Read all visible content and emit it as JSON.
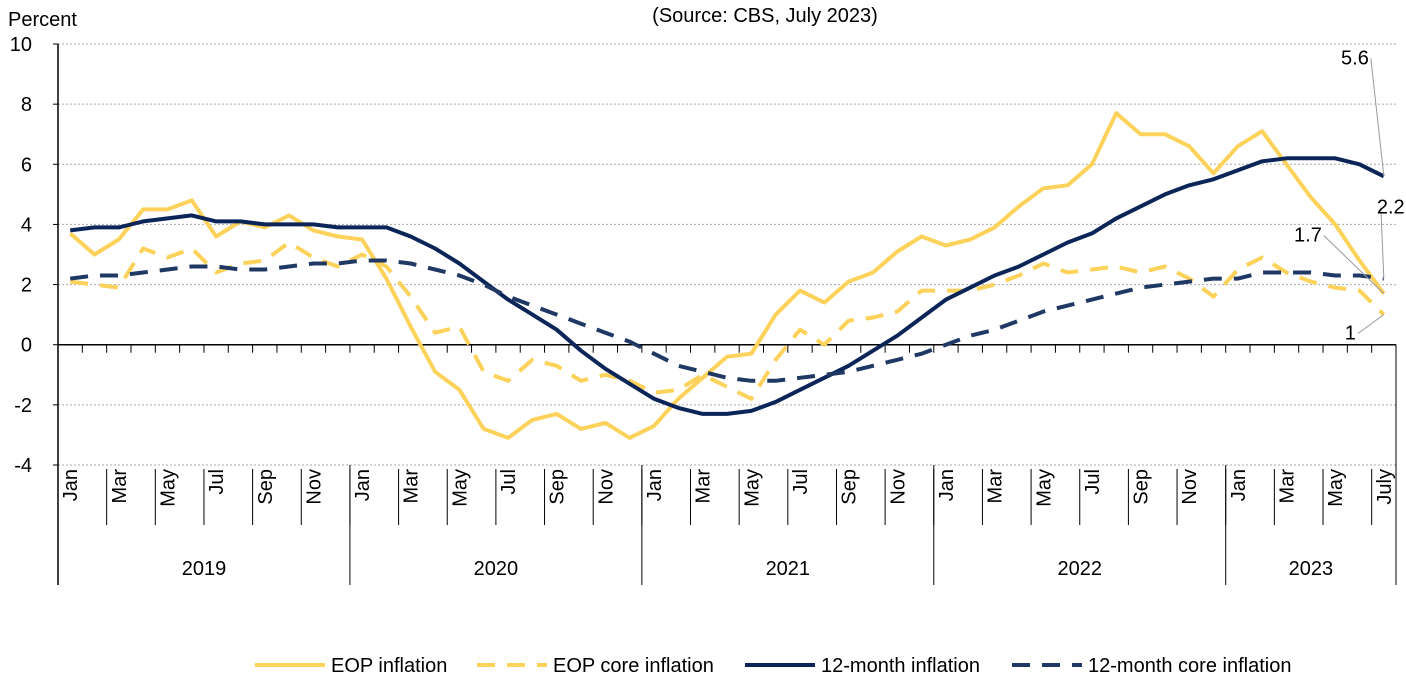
{
  "chart_data": {
    "type": "line",
    "title": "(Source: CBS, July 2023)",
    "y_label": "Percent",
    "categories": [
      "Jan",
      null,
      "Mar",
      null,
      "May",
      null,
      "Jul",
      null,
      "Sep",
      null,
      "Nov",
      null,
      "Jan",
      null,
      "Mar",
      null,
      "May",
      null,
      "Jul",
      null,
      "Sep",
      null,
      "Nov",
      null,
      "Jan",
      null,
      "Mar",
      null,
      "May",
      null,
      "Jul",
      null,
      "Sep",
      null,
      "Nov",
      null,
      "Jan",
      null,
      "Mar",
      null,
      "May",
      null,
      "Jul",
      null,
      "Sep",
      null,
      "Nov",
      null,
      "Jan",
      null,
      "Mar",
      null,
      "May",
      null,
      "July"
    ],
    "years": [
      "2019",
      "2020",
      "2021",
      "2022",
      "2023"
    ],
    "series": [
      {
        "name": "EOP inflation",
        "color": "#fcd25a",
        "dash": false,
        "values": [
          3.7,
          3.0,
          3.5,
          4.5,
          4.5,
          4.8,
          3.6,
          4.1,
          3.9,
          4.3,
          3.8,
          3.6,
          3.5,
          2.2,
          0.6,
          -0.9,
          -1.5,
          -2.8,
          -3.1,
          -2.5,
          -2.3,
          -2.8,
          -2.6,
          -3.1,
          -2.7,
          -1.8,
          -1.1,
          -0.4,
          -0.3,
          1.0,
          1.8,
          1.4,
          2.1,
          2.4,
          3.1,
          3.6,
          3.3,
          3.5,
          3.9,
          4.6,
          5.2,
          5.3,
          6.0,
          7.7,
          7.0,
          7.0,
          6.6,
          5.7,
          6.6,
          7.1,
          6.0,
          4.9,
          4.0,
          2.8,
          1.7
        ]
      },
      {
        "name": "EOP core inflation",
        "color": "#fcd25a",
        "dash": true,
        "values": [
          2.1,
          2.0,
          1.9,
          3.2,
          2.9,
          3.2,
          2.4,
          2.7,
          2.8,
          3.4,
          2.9,
          2.6,
          3.0,
          2.6,
          1.6,
          0.4,
          0.6,
          -0.9,
          -1.2,
          -0.5,
          -0.7,
          -1.2,
          -1.0,
          -1.2,
          -1.6,
          -1.5,
          -1.0,
          -1.4,
          -1.8,
          -0.5,
          0.5,
          0.0,
          0.8,
          0.9,
          1.1,
          1.8,
          1.8,
          1.8,
          2.0,
          2.3,
          2.7,
          2.4,
          2.5,
          2.6,
          2.4,
          2.6,
          2.2,
          1.6,
          2.5,
          2.9,
          2.4,
          2.1,
          1.9,
          1.8,
          1.0
        ]
      },
      {
        "name": "12-month inflation",
        "color": "#0b2559",
        "dash": false,
        "values": [
          3.8,
          3.9,
          3.9,
          4.1,
          4.2,
          4.3,
          4.1,
          4.1,
          4.0,
          4.0,
          4.0,
          3.9,
          3.9,
          3.9,
          3.6,
          3.2,
          2.7,
          2.1,
          1.5,
          1.0,
          0.5,
          -0.2,
          -0.8,
          -1.3,
          -1.8,
          -2.1,
          -2.3,
          -2.3,
          -2.2,
          -1.9,
          -1.5,
          -1.1,
          -0.7,
          -0.2,
          0.3,
          0.9,
          1.5,
          1.9,
          2.3,
          2.6,
          3.0,
          3.4,
          3.7,
          4.2,
          4.6,
          5.0,
          5.3,
          5.5,
          5.8,
          6.1,
          6.2,
          6.2,
          6.2,
          6.0,
          5.6
        ]
      },
      {
        "name": "12-month core inflation",
        "color": "#1f3864",
        "dash": true,
        "values": [
          2.2,
          2.3,
          2.3,
          2.4,
          2.5,
          2.6,
          2.6,
          2.5,
          2.5,
          2.6,
          2.7,
          2.7,
          2.8,
          2.8,
          2.7,
          2.5,
          2.3,
          2.0,
          1.6,
          1.3,
          1.0,
          0.7,
          0.4,
          0.1,
          -0.3,
          -0.7,
          -0.9,
          -1.1,
          -1.2,
          -1.2,
          -1.1,
          -1.0,
          -0.9,
          -0.7,
          -0.5,
          -0.3,
          0.0,
          0.3,
          0.5,
          0.8,
          1.1,
          1.3,
          1.5,
          1.7,
          1.9,
          2.0,
          2.1,
          2.2,
          2.2,
          2.4,
          2.4,
          2.4,
          2.3,
          2.3,
          2.2
        ]
      }
    ],
    "ylim": [
      -4,
      10
    ],
    "yticks": [
      -4,
      -2,
      0,
      2,
      4,
      6,
      8,
      10
    ],
    "grid": true
  }
}
